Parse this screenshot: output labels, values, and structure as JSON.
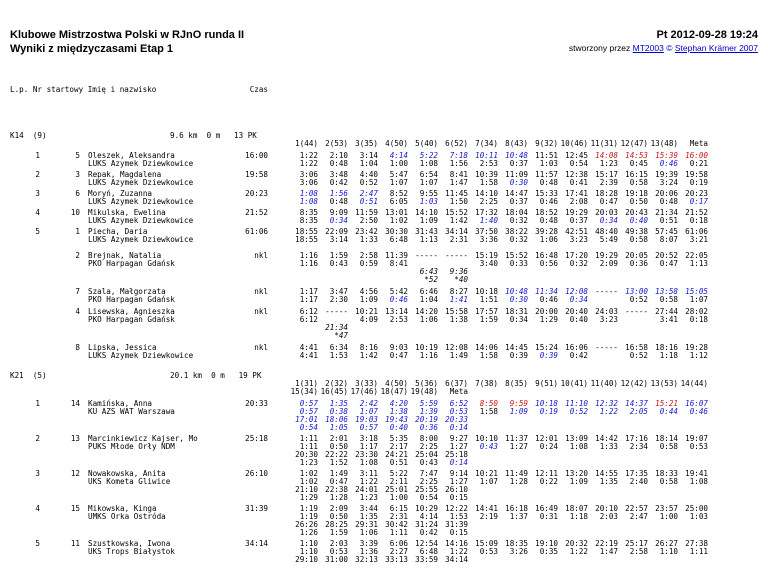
{
  "header": {
    "title": "Klubowe Mistrzostwa Polski w RJnO runda II",
    "subtitle": "Wyniki z międzyczasami Etap 1",
    "datetime": "Pt 2012-09-28 19:24",
    "credit_prefix": "stworzony przez ",
    "credit_link1": "MT2003",
    "credit_sep": " © ",
    "credit_link2": "Stephan Krämer 2007"
  },
  "legend": {
    "left": "L.p. Nr startowy Imię i nazwisko",
    "time": "Czas"
  },
  "colors": {
    "link_blue": "#0000cc",
    "fastest_blue": "#1414cc",
    "fastest_red": "#cc1414"
  },
  "sections": [
    {
      "id": "k14",
      "title": "K14  (9)",
      "course": "9.6 km  0 m   13 PK",
      "control_lines": [
        [
          "1(44)",
          "2(53)",
          "3(35)",
          "4(50)",
          "5(40)",
          "6(52)",
          "7(34)",
          "8(43)",
          "9(32)",
          "10(46)",
          "11(31)",
          "12(47)",
          "13(48)",
          "Meta"
        ]
      ],
      "rows": [
        {
          "pos": "1",
          "bib": "5",
          "name": "Oleszek, Aleksandra",
          "time": "16:00",
          "club": "LUKS Azymek Dziewkowice",
          "lines": [
            [
              "1:22",
              "2:10",
              "3:14",
              "4:14|b",
              "5:22|b",
              "7:18|b",
              "10:11|b",
              "10:48|b",
              "11:51",
              "12:45",
              "14:08|r",
              "14:53|r",
              "15:39|r",
              "16:00|r"
            ],
            [
              "1:22",
              "0:48",
              "1:04",
              "1:00",
              "1:08",
              "1:56",
              "2:53",
              "0:37",
              "1:03",
              "0:54",
              "1:23",
              "0:45",
              "0:46|b",
              "0:21"
            ]
          ]
        },
        {
          "pos": "2",
          "bib": "3",
          "name": "Repak, Magdalena",
          "time": "19:58",
          "club": "LUKS Azymek Dziewkowice",
          "lines": [
            [
              "3:06",
              "3:48",
              "4:40",
              "5:47",
              "6:54",
              "8:41",
              "10:39",
              "11:09",
              "11:57",
              "12:38",
              "15:17",
              "16:15",
              "19:39",
              "19:58"
            ],
            [
              "3:06",
              "0:42",
              "0:52",
              "1:07",
              "1:07",
              "1:47",
              "1:58",
              "0:30|b",
              "0:48",
              "0:41",
              "2:39",
              "0:58",
              "3:24",
              "0:19"
            ]
          ]
        },
        {
          "pos": "3",
          "bib": "6",
          "name": "Moryń, Zuzanna",
          "time": "20:23",
          "club": "LUKS Azymek Dziewkowice",
          "lines": [
            [
              "1:08|b",
              "1:56|b",
              "2:47|b",
              "8:52",
              "9:55",
              "11:45",
              "14:10",
              "14:47",
              "15:33",
              "17:41",
              "18:28",
              "19:18",
              "20:06",
              "20:23"
            ],
            [
              "1:08|b",
              "0:48",
              "0:51|b",
              "6:05",
              "1:03|b",
              "1:50",
              "2:25",
              "0:37",
              "0:46",
              "2:08",
              "0:47",
              "0:50",
              "0:48",
              "0:17|b"
            ]
          ]
        },
        {
          "pos": "4",
          "bib": "10",
          "name": "Mikulska, Ewelina",
          "time": "21:52",
          "club": "LUKS Azymek Dziewkowice",
          "lines": [
            [
              "8:35",
              "9:09",
              "11:59",
              "13:01",
              "14:10",
              "15:52",
              "17:32",
              "18:04",
              "18:52",
              "19:29",
              "20:03",
              "20:43",
              "21:34",
              "21:52"
            ],
            [
              "8:35",
              "0:34|b",
              "2:50",
              "1:02",
              "1:09",
              "1:42",
              "1:40|b",
              "0:32",
              "0:48",
              "0:37",
              "0:34|b",
              "0:40|b",
              "0:51",
              "0:18"
            ]
          ]
        },
        {
          "pos": "5",
          "bib": "1",
          "name": "Piecha, Daria",
          "time": "61:06",
          "club": "LUKS Azymek Dziewkowice",
          "lines": [
            [
              "18:55",
              "22:09",
              "23:42",
              "30:30",
              "31:43",
              "34:14",
              "37:50",
              "38:22",
              "39:28",
              "42:51",
              "48:40",
              "49:38",
              "57:45",
              "61:06"
            ],
            [
              "18:55",
              "3:14",
              "1:33",
              "6:48",
              "1:13",
              "2:31",
              "3:36",
              "0:32",
              "1:06",
              "3:23",
              "5:49",
              "0:58",
              "8:07",
              "3:21"
            ]
          ]
        },
        {
          "pos": "",
          "bib": "2",
          "name": "Brejnak, Natalia",
          "time": "nkl",
          "club": "PKO Harpagan Gdańsk",
          "nkl": true,
          "gap": true,
          "lines": [
            [
              "1:16",
              "1:59",
              "2:58",
              "11:39",
              "-----",
              "-----",
              "15:19",
              "15:52",
              "16:48",
              "17:20",
              "19:29",
              "20:05",
              "20:52",
              "22:05"
            ],
            [
              "1:16",
              "0:43",
              "0:59",
              "8:41",
              "",
              "",
              "3:40",
              "0:33",
              "0:56",
              "0:32",
              "2:09",
              "0:36",
              "0:47",
              "1:13"
            ],
            [
              "",
              "",
              "",
              "",
              "6:43|i",
              "9:36|i",
              "",
              "",
              "",
              "",
              "",
              "",
              "",
              ""
            ],
            [
              "",
              "",
              "",
              "",
              "*52|i",
              "*40|i",
              "",
              "",
              "",
              "",
              "",
              "",
              "",
              ""
            ]
          ]
        },
        {
          "pos": "",
          "bib": "7",
          "name": "Szala, Małgorzata",
          "time": "nkl",
          "club": "PKO Harpagan Gdańsk",
          "nkl": true,
          "lines": [
            [
              "1:17",
              "3:47",
              "4:56",
              "5:42",
              "6:46",
              "8:27",
              "10:18",
              "10:48|b",
              "11:34|b",
              "12:08|b",
              "-----",
              "13:00|b",
              "13:58|b",
              "15:05|b"
            ],
            [
              "1:17",
              "2:30",
              "1:09",
              "0:46|b",
              "1:04",
              "1:41|b",
              "1:51",
              "0:30|b",
              "0:46",
              "0:34|b",
              "",
              "0:52",
              "0:58",
              "1:07"
            ]
          ]
        },
        {
          "pos": "",
          "bib": "4",
          "name": "Lisewska, Agnieszka",
          "time": "nkl",
          "club": "PKO Harpagan Gdańsk",
          "nkl": true,
          "lines": [
            [
              "6:12",
              "-----",
              "10:21",
              "13:14",
              "14:20",
              "15:58",
              "17:57",
              "18:31",
              "20:00",
              "20:40",
              "24:03",
              "-----",
              "27:44",
              "28:02"
            ],
            [
              "6:12",
              "",
              "4:09",
              "2:53",
              "1:06",
              "1:38",
              "1:59",
              "0:34",
              "1:29",
              "0:40",
              "3:23",
              "",
              "3:41",
              "0:18"
            ],
            [
              "",
              "21:34|i",
              "",
              "",
              "",
              "",
              "",
              "",
              "",
              "",
              "",
              "",
              "",
              ""
            ],
            [
              "",
              "*47|i",
              "",
              "",
              "",
              "",
              "",
              "",
              "",
              "",
              "",
              "",
              "",
              ""
            ]
          ]
        },
        {
          "pos": "",
          "bib": "8",
          "name": "Lipska, Jessica",
          "time": "nkl",
          "club": "LUKS Azymek Dziewkowice",
          "nkl": true,
          "lines": [
            [
              "4:41",
              "6:34",
              "8:16",
              "9:03",
              "10:19",
              "12:08",
              "14:06",
              "14:45",
              "15:24",
              "16:06",
              "-----",
              "16:58",
              "18:16",
              "19:28"
            ],
            [
              "4:41",
              "1:53",
              "1:42",
              "0:47",
              "1:16",
              "1:49",
              "1:58",
              "0:39",
              "0:39|b",
              "0:42",
              "",
              "0:52",
              "1:18",
              "1:12"
            ]
          ]
        }
      ]
    },
    {
      "id": "k21",
      "title": "K21  (5)",
      "course": "20.1 km  0 m   19 PK",
      "control_lines": [
        [
          "1(31)",
          "2(32)",
          "3(33)",
          "4(50)",
          "5(36)",
          "6(37)",
          "7(38)",
          "8(35)",
          "9(51)",
          "10(41)",
          "11(40)",
          "12(42)",
          "13(53)",
          "14(44)"
        ],
        [
          "15(34)",
          "16(45)",
          "17(46)",
          "18(47)",
          "19(48)",
          "Meta"
        ]
      ],
      "rows": [
        {
          "pos": "1",
          "bib": "14",
          "name": "Kamińska, Anna",
          "time": "20:33",
          "club": "KU AZS WAT Warszawa",
          "lines": [
            [
              "0:57|b",
              "1:35|b",
              "2:42|b",
              "4:20|b",
              "5:59|b",
              "6:52|b",
              "8:50|r",
              "9:59|r",
              "10:18|b",
              "11:10|b",
              "12:32|b",
              "14:37|b",
              "15:21|r",
              "16:07|b"
            ],
            [
              "0:57|b",
              "0:38|b",
              "1:07|b",
              "1:38|b",
              "1:39|b",
              "0:53|b",
              "1:58",
              "1:09|b",
              "0:19|b",
              "0:52|b",
              "1:22|b",
              "2:05|b",
              "0:44|b",
              "0:46|b"
            ],
            [
              "17:01|b",
              "18:06|b",
              "19:03|b",
              "19:43|b",
              "20:19|b",
              "20:33|b"
            ],
            [
              "0:54|b",
              "1:05|b",
              "0:57|b",
              "0:40|b",
              "0:36|b",
              "0:14|b"
            ]
          ]
        },
        {
          "pos": "2",
          "bib": "13",
          "name": "Marcinkiewicz Kajser, Mo",
          "time": "25:18",
          "club": "PUKS Młode Orły NDM",
          "lines": [
            [
              "1:11",
              "2:01",
              "3:18",
              "5:35",
              "8:00",
              "9:27",
              "10:10",
              "11:37",
              "12:01",
              "13:09",
              "14:42",
              "17:16",
              "18:14",
              "19:07"
            ],
            [
              "1:11",
              "0:50",
              "1:17",
              "2:17",
              "2:25",
              "1:27",
              "0:43|b",
              "1:27",
              "0:24",
              "1:08",
              "1:33",
              "2:34",
              "0:58",
              "0:53"
            ],
            [
              "20:30",
              "22:22",
              "23:30",
              "24:21",
              "25:04",
              "25:18"
            ],
            [
              "1:23",
              "1:52",
              "1:08",
              "0:51",
              "0:43",
              "0:14|b"
            ]
          ]
        },
        {
          "pos": "3",
          "bib": "12",
          "name": "Nowakowska, Anita",
          "time": "26:10",
          "club": "UKS Kometa Gliwice",
          "lines": [
            [
              "1:02",
              "1:49",
              "3:11",
              "5:22",
              "7:47",
              "9:14",
              "10:21",
              "11:49",
              "12:11",
              "13:20",
              "14:55",
              "17:35",
              "18:33",
              "19:41"
            ],
            [
              "1:02",
              "0:47",
              "1:22",
              "2:11",
              "2:25",
              "1:27",
              "1:07",
              "1:28",
              "0:22",
              "1:09",
              "1:35",
              "2:40",
              "0:58",
              "1:08"
            ],
            [
              "21:10",
              "22:38",
              "24:01",
              "25:01",
              "25:55",
              "26:10"
            ],
            [
              "1:29",
              "1:28",
              "1:23",
              "1:00",
              "0:54",
              "0:15"
            ]
          ]
        },
        {
          "pos": "4",
          "bib": "15",
          "name": "Mikowska, Kinga",
          "time": "31:39",
          "club": "UMKS Orka Ostróda",
          "lines": [
            [
              "1:19",
              "2:09",
              "3:44",
              "6:15",
              "10:29",
              "12:22",
              "14:41",
              "16:18",
              "16:49",
              "18:07",
              "20:10",
              "22:57",
              "23:57",
              "25:00"
            ],
            [
              "1:19",
              "0:50",
              "1:35",
              "2:31",
              "4:14",
              "1:53",
              "2:19",
              "1:37",
              "0:31",
              "1:18",
              "2:03",
              "2:47",
              "1:00",
              "1:03"
            ],
            [
              "26:26",
              "28:25",
              "29:31",
              "30:42",
              "31:24",
              "31:39"
            ],
            [
              "1:26",
              "1:59",
              "1:06",
              "1:11",
              "0:42",
              "0:15"
            ]
          ]
        },
        {
          "pos": "5",
          "bib": "11",
          "name": "Szustkowska, Iwona",
          "time": "34:14",
          "club": "UKS Trops Białystok",
          "lines": [
            [
              "1:10",
              "2:03",
              "3:39",
              "6:06",
              "12:54",
              "14:16",
              "15:09",
              "18:35",
              "19:10",
              "20:32",
              "22:19",
              "25:17",
              "26:27",
              "27:38"
            ],
            [
              "1:10",
              "0:53",
              "1:36",
              "2:27",
              "6:48",
              "1:22",
              "0:53",
              "3:26",
              "0:35",
              "1:22",
              "1:47",
              "2:58",
              "1:10",
              "1:11"
            ],
            [
              "29:10",
              "31:00",
              "32:13",
              "33:13",
              "33:59",
              "34:14"
            ]
          ]
        }
      ]
    }
  ]
}
